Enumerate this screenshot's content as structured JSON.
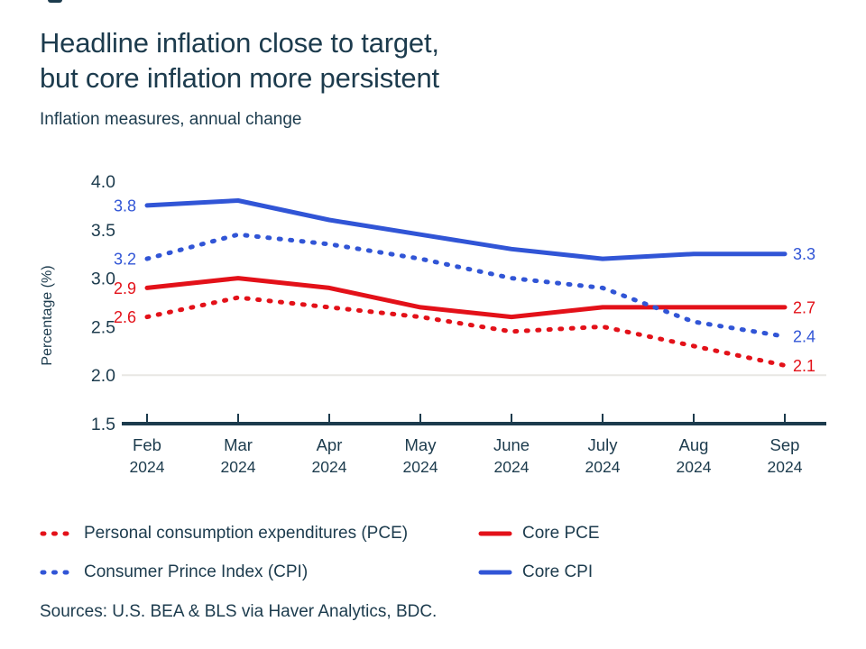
{
  "colors": {
    "red": "#e31119",
    "blue": "#3155d6",
    "navy": "#1c3b4d",
    "grid": "#e8e7e4",
    "background": "#ffffff"
  },
  "chart_data": {
    "type": "line",
    "title": "Headline inflation close to target, but core inflation more persistent",
    "title_lines": [
      "Headline inflation close to target,",
      "but core inflation more persistent"
    ],
    "subtitle": "Inflation measures, annual change",
    "xlabel": "",
    "ylabel": "Percentage (%)",
    "ylim": [
      1.5,
      4.0
    ],
    "yticks": [
      "4.0",
      "3.5",
      "3.0",
      "2.5",
      "2.0",
      "1.5"
    ],
    "grid_values": [
      2.0
    ],
    "legend_position": "bottom-left",
    "x_categories": [
      {
        "month": "Feb",
        "year": "2024"
      },
      {
        "month": "Mar",
        "year": "2024"
      },
      {
        "month": "Apr",
        "year": "2024"
      },
      {
        "month": "May",
        "year": "2024"
      },
      {
        "month": "June",
        "year": "2024"
      },
      {
        "month": "July",
        "year": "2024"
      },
      {
        "month": "Aug",
        "year": "2024"
      },
      {
        "month": "Sep",
        "year": "2024"
      }
    ],
    "series": [
      {
        "name": "Personal consumption expenditures (PCE)",
        "color": "red",
        "style": "dotted",
        "values": [
          2.6,
          2.8,
          2.7,
          2.6,
          2.45,
          2.5,
          2.3,
          2.1
        ],
        "start_label": "2.6",
        "end_label": "2.1"
      },
      {
        "name": "Core PCE",
        "color": "red",
        "style": "solid",
        "values": [
          2.9,
          3.0,
          2.9,
          2.7,
          2.6,
          2.7,
          2.7,
          2.7
        ],
        "start_label": "2.9",
        "end_label": "2.7"
      },
      {
        "name": "Consumer Prince Index (CPI)",
        "color": "blue",
        "style": "dotted",
        "values": [
          3.2,
          3.45,
          3.35,
          3.2,
          3.0,
          2.9,
          2.55,
          2.4
        ],
        "start_label": "3.2",
        "end_label": "2.4"
      },
      {
        "name": "Core CPI",
        "color": "blue",
        "style": "solid",
        "values": [
          3.75,
          3.8,
          3.6,
          3.45,
          3.3,
          3.2,
          3.25,
          3.25
        ],
        "start_label": "3.8",
        "end_label": "3.3"
      }
    ]
  },
  "legend": {
    "items": [
      {
        "label": "Personal consumption expenditures (PCE)",
        "series_index": 0
      },
      {
        "label": "Core PCE",
        "series_index": 1
      },
      {
        "label": "Consumer Prince Index (CPI)",
        "series_index": 2
      },
      {
        "label": "Core CPI",
        "series_index": 3
      }
    ]
  },
  "footer": {
    "source_note": "Sources: U.S. BEA & BLS via Haver Analytics, BDC."
  }
}
